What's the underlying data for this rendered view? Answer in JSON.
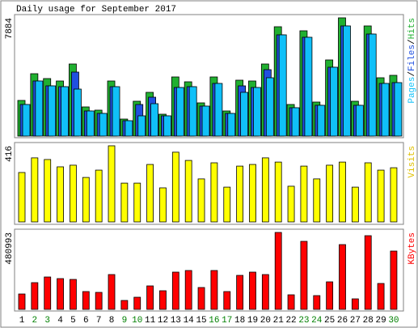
{
  "chart_data": [
    {
      "type": "bar",
      "title": "Daily usage for September 2017",
      "legend_separator": "/",
      "ylim": [
        0,
        7884
      ],
      "yticks": [
        7884
      ],
      "series": [
        {
          "name": "Hits",
          "color": "#20b030",
          "values": [
            2376,
            4158,
            3834,
            3672,
            4806,
            1944,
            1728,
            3672,
            1134,
            2322,
            2916,
            1458,
            3942,
            3618,
            2214,
            3942,
            1674,
            3726,
            3672,
            4806,
            7290,
            2106,
            7020,
            2268,
            5076,
            7884,
            2322,
            7344,
            3888,
            4050
          ]
        },
        {
          "name": "Files",
          "color": "#2050e0",
          "values": [
            2106,
            3672,
            3348,
            3294,
            4266,
            1674,
            1512,
            3294,
            1026,
            2106,
            2592,
            1350,
            3240,
            3294,
            1998,
            3510,
            1512,
            3348,
            3240,
            4428,
            6750,
            1890,
            6588,
            2052,
            4590,
            7344,
            2052,
            6804,
            3510,
            3564
          ]
        },
        {
          "name": "Pages",
          "color": "#10c0f8",
          "values": [
            2106,
            3672,
            3348,
            3294,
            3132,
            1674,
            1512,
            3294,
            1026,
            1350,
            2160,
            1350,
            3240,
            3294,
            1998,
            3510,
            1512,
            2916,
            3240,
            3888,
            6750,
            1890,
            6588,
            2052,
            4590,
            7344,
            2052,
            6804,
            3510,
            3564
          ]
        }
      ]
    },
    {
      "type": "bar",
      "ylim": [
        0,
        416
      ],
      "yticks": [
        416
      ],
      "series": [
        {
          "name": "Visits",
          "color": "#ffff00",
          "values": [
            270,
            350,
            341,
            301,
            310,
            243,
            283,
            416,
            212,
            212,
            314,
            186,
            381,
            336,
            235,
            323,
            190,
            305,
            314,
            350,
            327,
            195,
            305,
            235,
            310,
            327,
            190,
            323,
            283,
            296
          ]
        }
      ]
    },
    {
      "type": "bar",
      "ylim": [
        0,
        480993
      ],
      "yticks": [
        480993
      ],
      "categories": [
        "1",
        "2",
        "3",
        "4",
        "5",
        "6",
        "7",
        "8",
        "9",
        "10",
        "11",
        "12",
        "13",
        "14",
        "15",
        "16",
        "17",
        "18",
        "19",
        "20",
        "21",
        "22",
        "23",
        "24",
        "25",
        "26",
        "27",
        "28",
        "29",
        "30"
      ],
      "category_colors": [
        "#000000",
        "#008000",
        "#008000",
        "#000000",
        "#000000",
        "#000000",
        "#000000",
        "#000000",
        "#008000",
        "#008000",
        "#000000",
        "#000000",
        "#000000",
        "#000000",
        "#000000",
        "#008000",
        "#008000",
        "#000000",
        "#000000",
        "#000000",
        "#000000",
        "#000000",
        "#008000",
        "#008000",
        "#000000",
        "#000000",
        "#000000",
        "#000000",
        "#000000",
        "#008000"
      ],
      "series": [
        {
          "name": "KBytes",
          "color": "#ff0000",
          "values": [
            96200,
            167100,
            202500,
            192400,
            187300,
            111400,
            106300,
            217700,
            55700,
            75900,
            146800,
            116500,
            232900,
            243000,
            136700,
            243000,
            111400,
            212600,
            232900,
            217700,
            480993,
            91100,
            425300,
            86100,
            172100,
            405000,
            65800,
            460700,
            162000,
            364500
          ]
        }
      ]
    }
  ]
}
